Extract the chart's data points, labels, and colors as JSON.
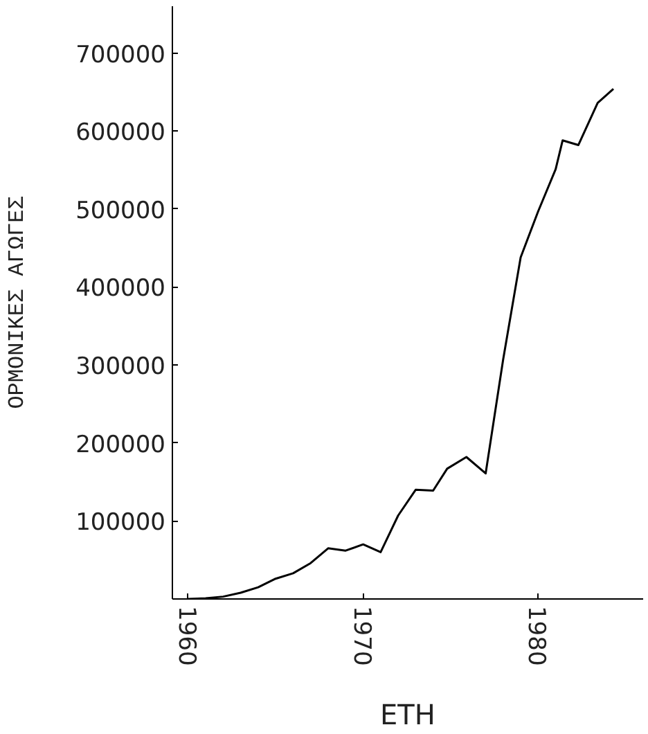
{
  "chart_data": {
    "type": "line",
    "xlabel": "ETH",
    "ylabel": "ΟΡΜΟΝΙΚΕΣ ΑΓΩΓΕΣ",
    "x": [
      1960,
      1961,
      1962,
      1963,
      1964,
      1965,
      1966,
      1967,
      1968,
      1969,
      1970,
      1971,
      1972,
      1973,
      1974,
      1974.8,
      1975.9,
      1977,
      1978,
      1979,
      1980,
      1981,
      1981.4,
      1982.3,
      1983.4,
      1984.3
    ],
    "series": [
      {
        "color": "#000000",
        "values": [
          0,
          1000,
          3000,
          8000,
          15000,
          26000,
          33000,
          46000,
          65000,
          62000,
          70000,
          60000,
          107000,
          140000,
          139000,
          167000,
          182000,
          161000,
          307000,
          438000,
          497000,
          551000,
          588000,
          582000,
          636000,
          654000
        ]
      }
    ],
    "xlim": [
      1959.1,
      1986
    ],
    "ylim": [
      0,
      760000
    ],
    "xticks": [
      1960,
      1970,
      1980
    ],
    "yticks": [
      {
        "value": 0,
        "label": null
      },
      100000,
      200000,
      300000,
      400000,
      500000,
      600000,
      700000
    ],
    "grid": false,
    "marker": "none",
    "line_style": "solid"
  }
}
